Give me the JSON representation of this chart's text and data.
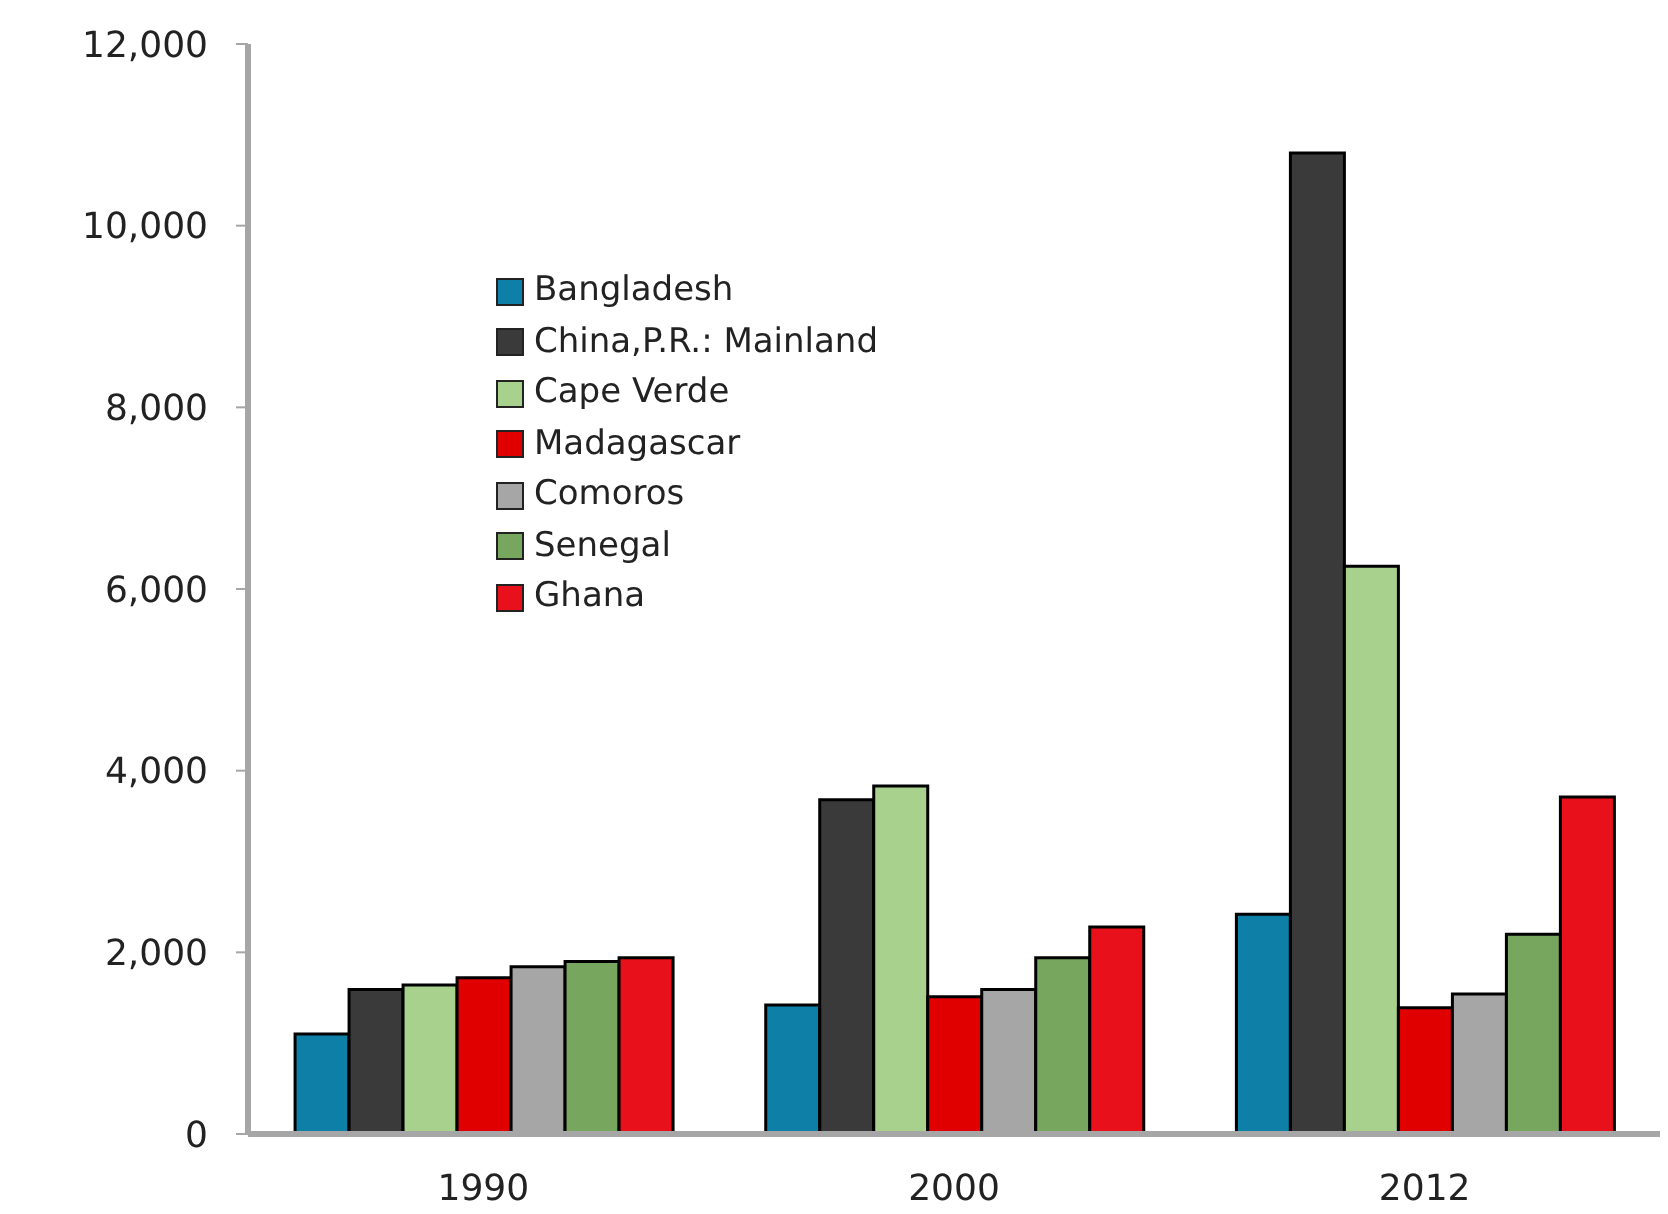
{
  "chart_data": {
    "type": "bar",
    "categories": [
      "1990",
      "2000",
      "2012"
    ],
    "series": [
      {
        "name": "Bangladesh",
        "color": "#0e7fa6",
        "values": [
          1100,
          1420,
          2420
        ]
      },
      {
        "name": "China,P.R.: Mainland",
        "color": "#3a3a3a",
        "values": [
          1590,
          3680,
          10800
        ]
      },
      {
        "name": "Cape Verde",
        "color": "#a9d18e",
        "values": [
          1640,
          3830,
          6250
        ]
      },
      {
        "name": "Madagascar",
        "color": "#e00000",
        "values": [
          1720,
          1510,
          1390
        ]
      },
      {
        "name": "Comoros",
        "color": "#a6a6a6",
        "values": [
          1840,
          1590,
          1540
        ]
      },
      {
        "name": "Senegal",
        "color": "#77a65f",
        "values": [
          1900,
          1940,
          2200
        ]
      },
      {
        "name": "Ghana",
        "color": "#e8101a",
        "values": [
          1940,
          2280,
          3710
        ]
      }
    ],
    "ylim": [
      0,
      12000
    ],
    "yticks": [
      {
        "value": 0,
        "label": "0"
      },
      {
        "value": 2000,
        "label": "2,000"
      },
      {
        "value": 4000,
        "label": "4,000"
      },
      {
        "value": 6000,
        "label": "6,000"
      },
      {
        "value": 8000,
        "label": "8,000"
      },
      {
        "value": 10000,
        "label": "10,000"
      },
      {
        "value": 12000,
        "label": "12,000"
      }
    ],
    "grid": false,
    "legend": "top left"
  }
}
